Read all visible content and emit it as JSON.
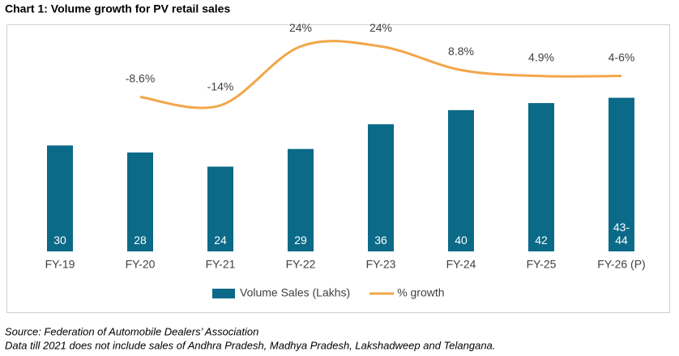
{
  "chart_data": {
    "type": "bar_line",
    "title": "Chart 1: Volume growth for PV retail sales",
    "categories": [
      "FY-19",
      "FY-20",
      "FY-21",
      "FY-22",
      "FY-23",
      "FY-24",
      "FY-25",
      "FY-26 (P)"
    ],
    "series": [
      {
        "name": "Volume Sales (Lakhs)",
        "type": "bar",
        "color": "#0b6a88",
        "values": [
          30,
          28,
          24,
          29,
          36,
          40,
          42,
          43.5
        ],
        "value_labels": [
          "30",
          "28",
          "24",
          "29",
          "36",
          "40",
          "42",
          "43-44"
        ]
      },
      {
        "name": "% growth",
        "type": "line",
        "axis": "y2",
        "color": "#f2a649",
        "values": [
          null,
          -8.6,
          -14,
          24,
          24,
          8.8,
          4.9,
          5
        ],
        "value_labels": [
          null,
          "-8.6%",
          "-14%",
          "24%",
          "24%",
          "8.8%",
          "4.9%",
          "4-6%"
        ]
      }
    ],
    "ylim": [
      0,
      62
    ],
    "y2lim": [
      -108,
      33
    ],
    "legend": "bottom",
    "notes": [
      "Source: Federation of Automobile Dealers’ Association",
      "Data till 2021 does not include sales of Andhra Pradesh, Madhya Pradesh, Lakshadweep and Telangana."
    ]
  }
}
